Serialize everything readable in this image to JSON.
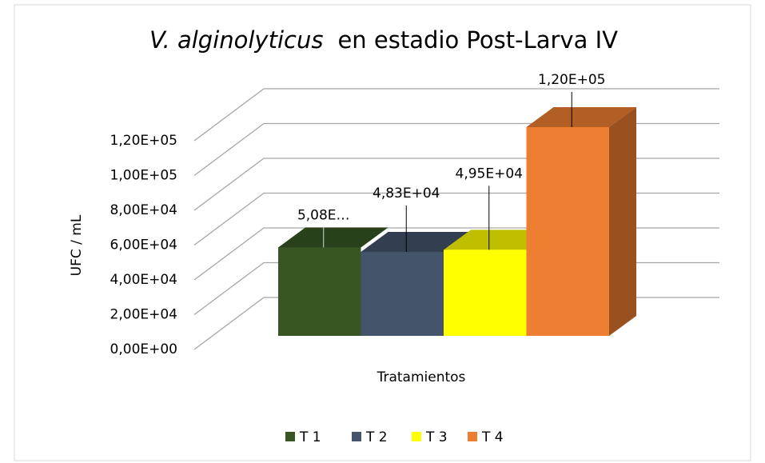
{
  "chart_data": {
    "type": "bar3d",
    "title": [
      "V. alginolyticus",
      "en estadio Post-Larva IV"
    ],
    "xlabel": "Tratamientos",
    "ylabel": "UFC / mL",
    "ylim": [
      0,
      120000
    ],
    "yticks": [
      {
        "value": 0,
        "label": "0,00E+00"
      },
      {
        "value": 20000,
        "label": "2,00E+04"
      },
      {
        "value": 40000,
        "label": "4,00E+04"
      },
      {
        "value": 60000,
        "label": "6,00E+04"
      },
      {
        "value": 80000,
        "label": "8,00E+04"
      },
      {
        "value": 100000,
        "label": "1,00E+05"
      },
      {
        "value": 120000,
        "label": "1,20E+05"
      }
    ],
    "grid": true,
    "legend": "bottom",
    "series": [
      {
        "name": "T 1",
        "color": "#375623",
        "values": [
          50800
        ],
        "value_labels": [
          "5,08E…"
        ]
      },
      {
        "name": "T 2",
        "color": "#44546a",
        "values": [
          48300
        ],
        "value_labels": [
          "4,83E+04"
        ]
      },
      {
        "name": "T 3",
        "color": "#ffff00",
        "values": [
          49500
        ],
        "value_labels": [
          "4,95E+04"
        ]
      },
      {
        "name": "T 4",
        "color": "#ed7d31",
        "values": [
          120000
        ],
        "value_labels": [
          "1,20E+05"
        ]
      }
    ]
  }
}
